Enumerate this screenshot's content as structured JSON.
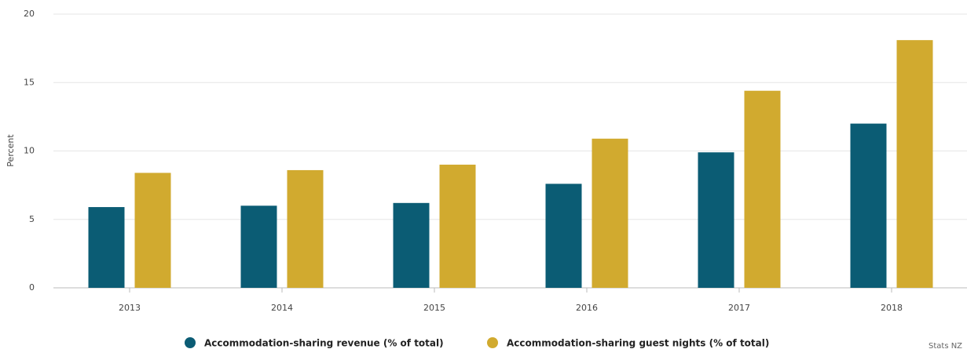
{
  "chart_data": {
    "type": "bar",
    "y_label": "Percent",
    "categories": [
      "2013",
      "2014",
      "2015",
      "2016",
      "2017",
      "2018"
    ],
    "series": [
      {
        "name": "Accommodation-sharing revenue (% of total)",
        "color": "#0b5c74",
        "values": [
          5.9,
          6.0,
          6.2,
          7.6,
          9.9,
          12.0
        ]
      },
      {
        "name": "Accommodation-sharing guest nights (% of total)",
        "color": "#d1aa2f",
        "values": [
          8.4,
          8.6,
          9.0,
          10.9,
          14.4,
          18.1
        ]
      }
    ],
    "ylim": [
      0,
      20
    ],
    "yticks": [
      0,
      5,
      10,
      15,
      20
    ],
    "grid": true,
    "legend": "bottom",
    "credit": "Stats NZ"
  }
}
